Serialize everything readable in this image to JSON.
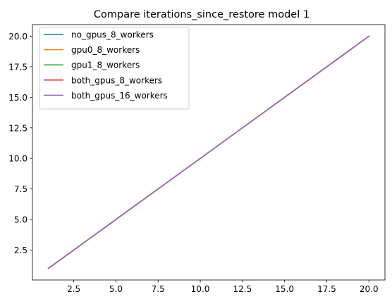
{
  "chart_data": {
    "type": "line",
    "title": "Compare iterations_since_restore model 1",
    "xlabel": "",
    "ylabel": "",
    "x": [
      1,
      2,
      3,
      4,
      5,
      6,
      7,
      8,
      9,
      10,
      11,
      12,
      13,
      14,
      15,
      16,
      17,
      18,
      19,
      20
    ],
    "series": [
      {
        "name": "no_gpus_8_workers",
        "color": "#1f77b4",
        "values": [
          1,
          2,
          3,
          4,
          5,
          6,
          7,
          8,
          9,
          10,
          11,
          12,
          13,
          14,
          15,
          16,
          17,
          18,
          19,
          20
        ]
      },
      {
        "name": "gpu0_8_workers",
        "color": "#ff7f0e",
        "values": [
          1,
          2,
          3,
          4,
          5,
          6,
          7,
          8,
          9,
          10,
          11,
          12,
          13,
          14,
          15,
          16,
          17,
          18,
          19,
          20
        ]
      },
      {
        "name": "gpu1_8_workers",
        "color": "#2ca02c",
        "values": [
          1,
          2,
          3,
          4,
          5,
          6,
          7,
          8,
          9,
          10,
          11,
          12,
          13,
          14,
          15,
          16,
          17,
          18,
          19,
          20
        ]
      },
      {
        "name": "both_gpus_8_workers",
        "color": "#d62728",
        "values": [
          1,
          2,
          3,
          4,
          5,
          6,
          7,
          8,
          9,
          10,
          11,
          12,
          13,
          14,
          15,
          16,
          17,
          18,
          19,
          20
        ]
      },
      {
        "name": "both_gpus_16_workers",
        "color": "#9467bd",
        "values": [
          1,
          2,
          3,
          4,
          5,
          6,
          7,
          8,
          9,
          10,
          11,
          12,
          13,
          14,
          15,
          16,
          17,
          18,
          19,
          20
        ]
      }
    ],
    "xlim": [
      0.05,
      20.95
    ],
    "ylim": [
      0.05,
      20.95
    ],
    "xticks": [
      "2.5",
      "5.0",
      "7.5",
      "10.0",
      "12.5",
      "15.0",
      "17.5",
      "20.0"
    ],
    "yticks": [
      "2.5",
      "5.0",
      "7.5",
      "10.0",
      "12.5",
      "15.0",
      "17.5",
      "20.0"
    ],
    "legend_position": "top-left",
    "grid": false
  }
}
